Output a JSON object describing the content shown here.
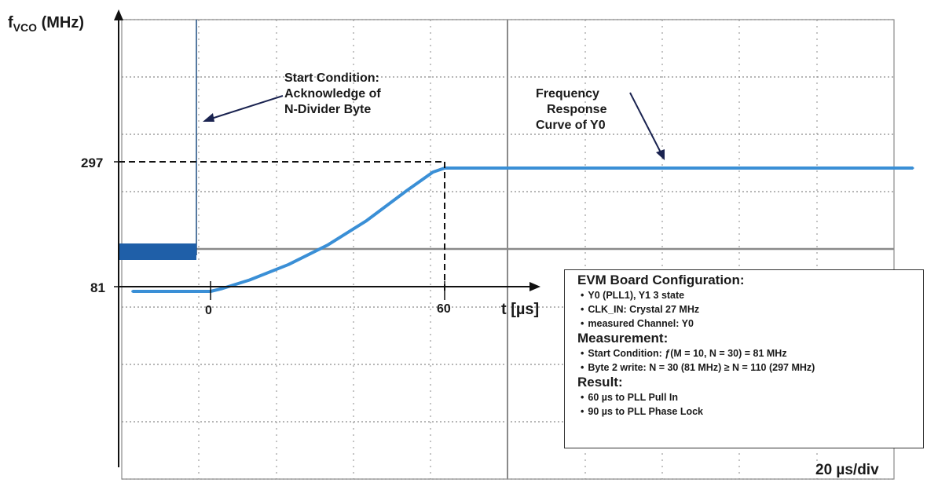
{
  "chart_data": {
    "type": "line",
    "ylabel": "f",
    "ylabel_sub": "VCO",
    "ylabel_unit": " (MHz)",
    "xlabel": "t [µs]",
    "y_ticks": [
      "297",
      "81"
    ],
    "x_ticks": [
      "0",
      "60"
    ],
    "timebase": "20 µs/div",
    "series": [
      {
        "color": "#3a8fd6",
        "points": [
          [
            -20,
            81
          ],
          [
            0,
            81
          ],
          [
            3,
            86
          ],
          [
            10,
            101
          ],
          [
            20,
            128
          ],
          [
            30,
            162
          ],
          [
            40,
            205
          ],
          [
            50,
            256
          ],
          [
            57,
            290
          ],
          [
            60,
            297
          ],
          [
            70,
            297
          ],
          [
            90,
            297
          ],
          [
            110,
            297
          ],
          [
            130,
            297
          ],
          [
            150,
            297
          ],
          [
            170,
            297
          ],
          [
            180,
            297
          ]
        ]
      }
    ],
    "annotations": [
      {
        "id": "start",
        "lines": [
          "Start Condition:",
          "Acknowledge of",
          "N-Divider Byte"
        ]
      },
      {
        "id": "freq",
        "lines": [
          "Frequency",
          "Response",
          "Curve of Y0"
        ]
      }
    ]
  },
  "config": {
    "title": "EVM Board Configuration:",
    "items": [
      "Y0 (PLL1),  Y1 3 state",
      "CLK_IN: Crystal 27 MHz",
      "measured Channel: Y0"
    ],
    "measurement_title": "Measurement:",
    "measurement_items": [
      "Start Condition:  ƒ(M = 10, N = 30) = 81 MHz",
      "Byte 2 write: N = 30 (81 MHz) ≥ N = 110 (297 MHz)"
    ],
    "result_title": "Result:",
    "result_items": [
      "60 µs to PLL Pull In",
      "90 µs to PLL Phase Lock"
    ]
  },
  "colors": {
    "trace": "#3a8fd6",
    "trace_dark": "#1f5fa8",
    "grid": "#8a8a8a"
  }
}
